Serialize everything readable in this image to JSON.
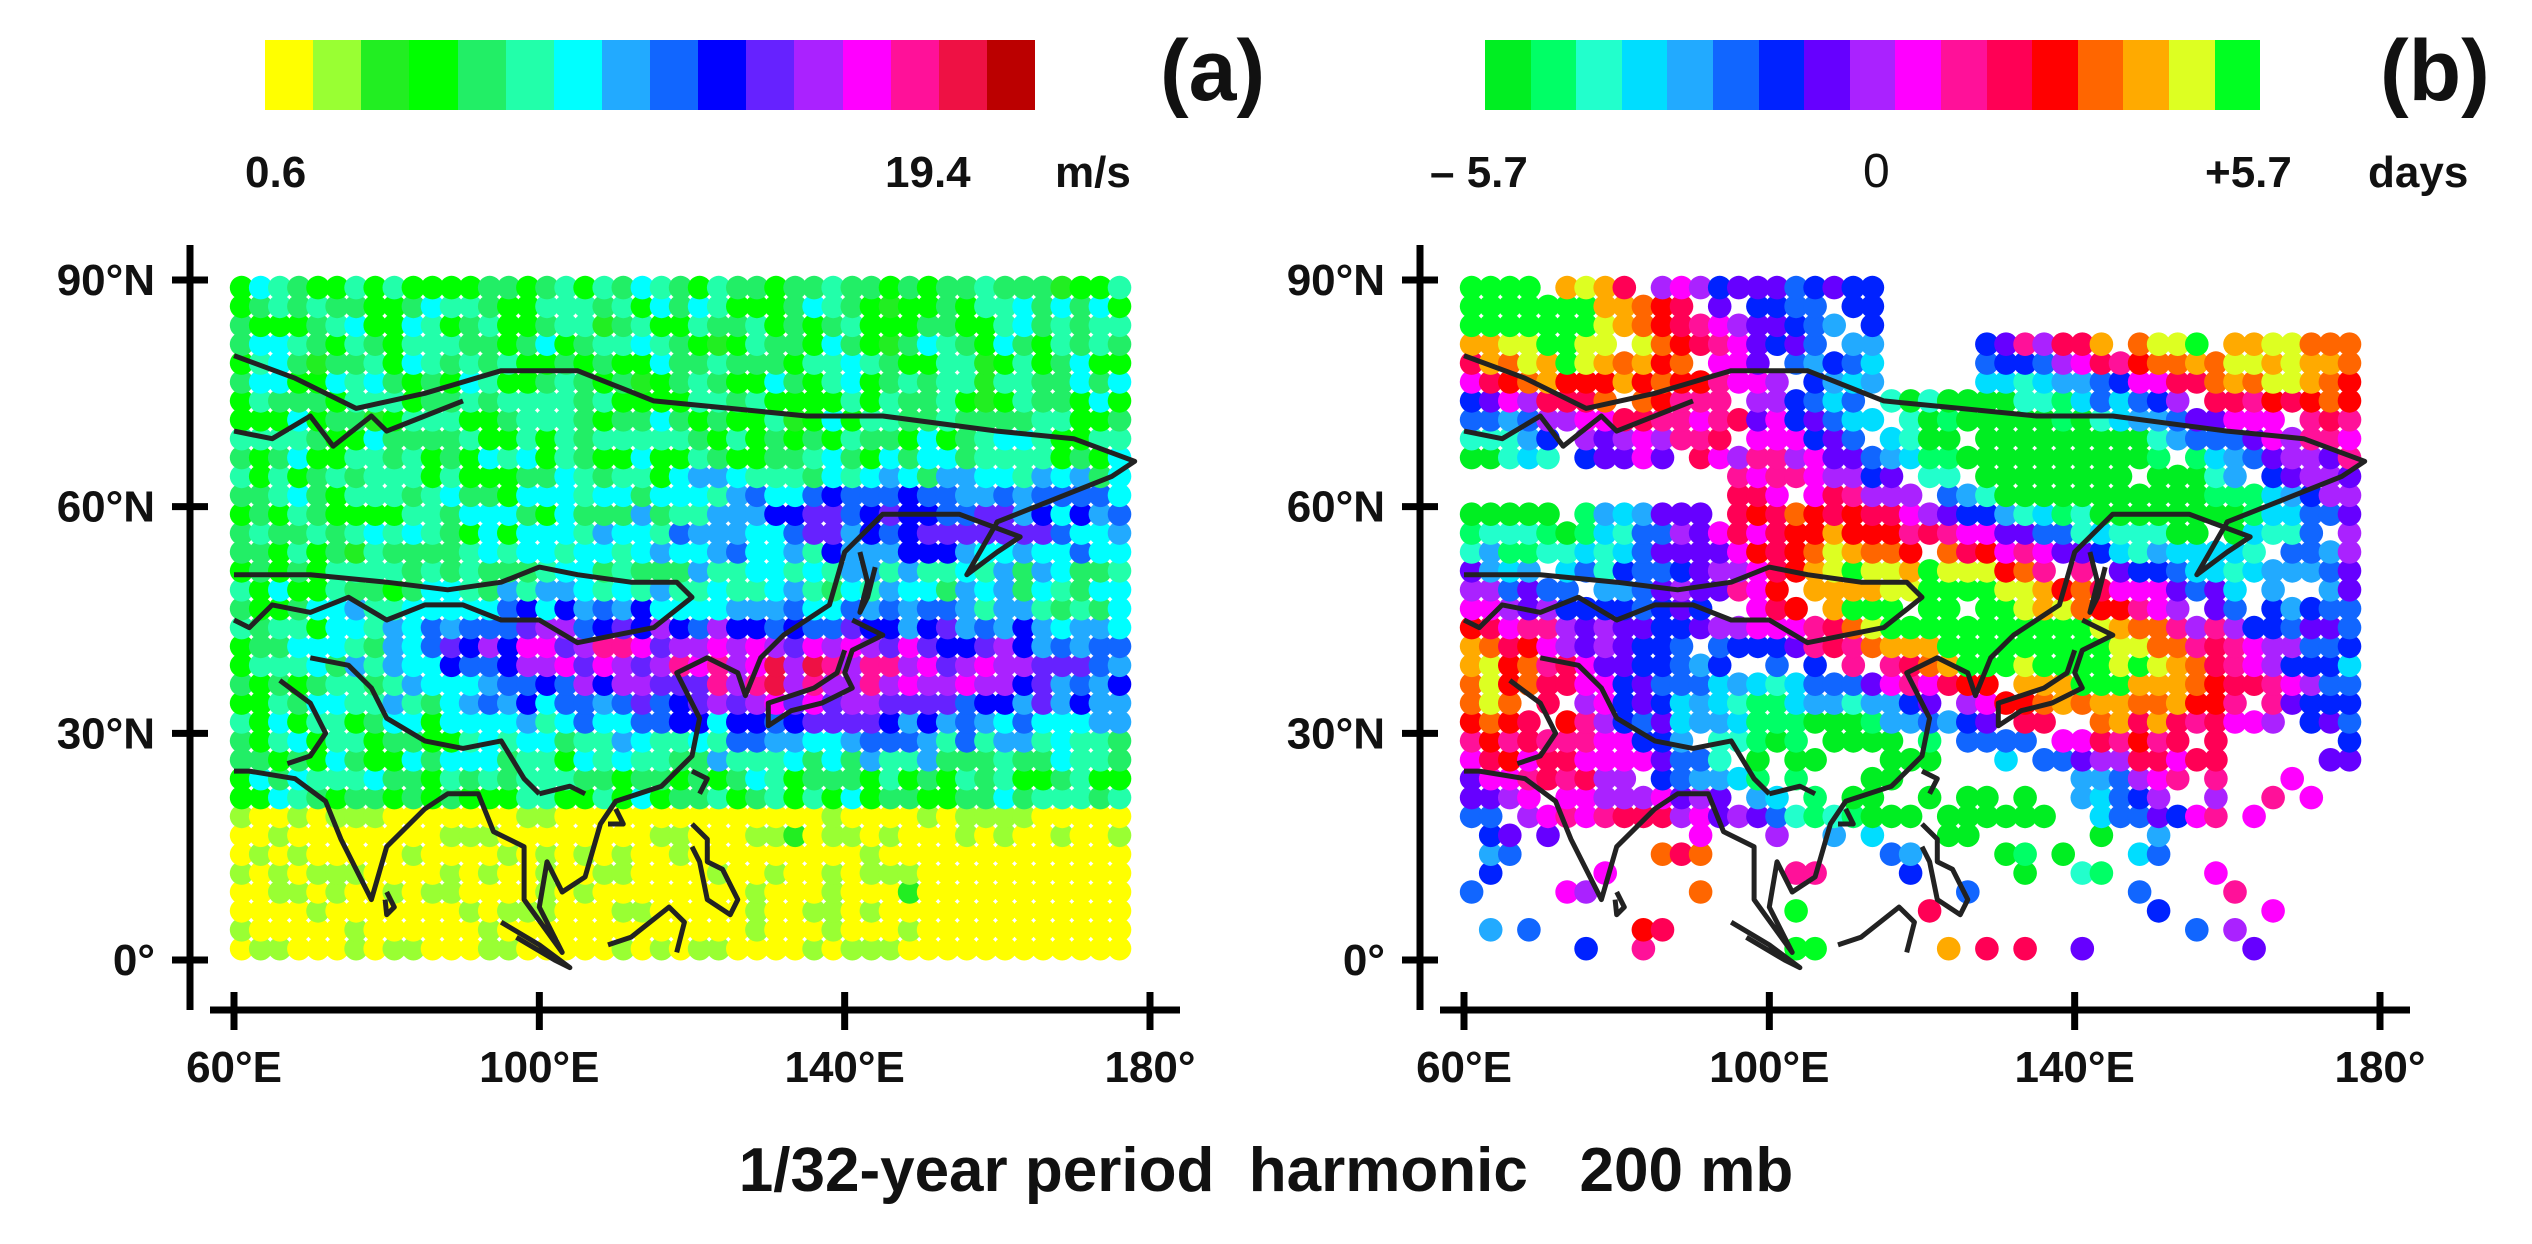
{
  "panels": [
    {
      "letter": "(a)",
      "colorbar": {
        "colors": [
          "#ffff00",
          "#99ff33",
          "#22ee22",
          "#00ff00",
          "#22ee66",
          "#22ffaa",
          "#00ffff",
          "#22aaff",
          "#1166ff",
          "#0000ff",
          "#6622ff",
          "#aa22ff",
          "#ff00ff",
          "#ff1199",
          "#ee1144",
          "#bb0000"
        ],
        "min_label": "0.6",
        "max_label": "19.4",
        "unit": "m/s"
      }
    },
    {
      "letter": "(b)",
      "colorbar": {
        "colors": [
          "#00ee22",
          "#00ff66",
          "#22ffcc",
          "#00ddff",
          "#22aaff",
          "#1166ff",
          "#0022ff",
          "#6600ff",
          "#aa22ff",
          "#ff00ff",
          "#ff1199",
          "#ff0055",
          "#ff0000",
          "#ff6600",
          "#ffaa00",
          "#ddff22",
          "#00ff22"
        ],
        "min_label": "– 5.7",
        "mid_label": "0",
        "max_label": "+5.7",
        "unit": "days"
      }
    }
  ],
  "axes": {
    "y_ticks": [
      {
        "value": 90,
        "label": "90°N"
      },
      {
        "value": 60,
        "label": "60°N"
      },
      {
        "value": 30,
        "label": "30°N"
      },
      {
        "value": 0,
        "label": "0°"
      }
    ],
    "x_ticks": [
      {
        "value": 60,
        "label": "60°E"
      },
      {
        "value": 100,
        "label": "100°E"
      },
      {
        "value": 140,
        "label": "140°E"
      },
      {
        "value": 180,
        "label": "180°"
      }
    ]
  },
  "footer": {
    "title": "1/32-year period  harmonic",
    "level": "200 mb"
  }
}
